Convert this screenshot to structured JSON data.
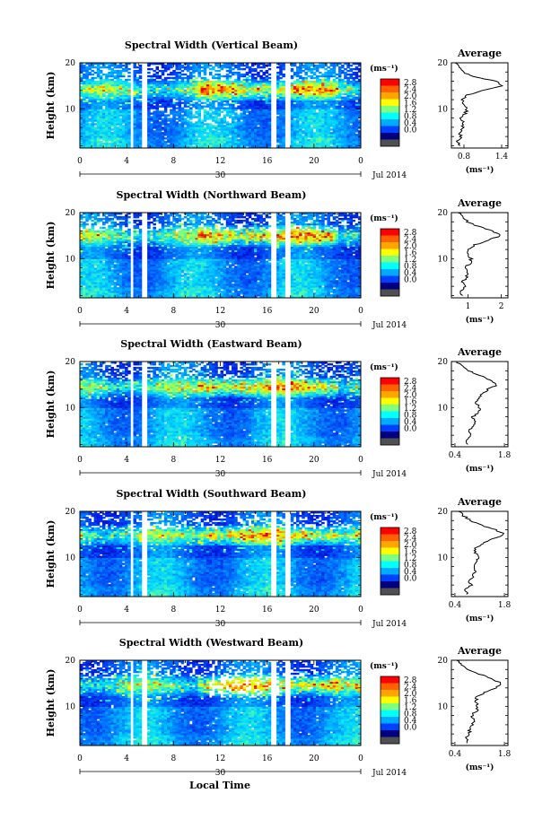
{
  "figure": {
    "date_label": "Jul 2014",
    "day_label": "30",
    "xlabel": "Local Time",
    "unit_label": "(ms⁻¹)",
    "avg_title": "Average",
    "avg_xlabel": "(ms⁻¹)",
    "ylabel": "Height (km)",
    "colorbar_ticks": [
      "2.8",
      "2.4",
      "2.0",
      "1.6",
      "1.2",
      "0.8",
      "0.4",
      "0.0"
    ],
    "colorbar_colors": [
      "#ff0000",
      "#ff6000",
      "#ffa500",
      "#ffff00",
      "#7fff7f",
      "#00ffff",
      "#00aaff",
      "#0040ff",
      "#00007f",
      "#505050"
    ]
  },
  "chart_data": [
    {
      "type": "heatmap",
      "title": "Spectral Width (Vertical Beam)",
      "xlabel": "Local Time",
      "ylabel": "Height (km)",
      "x_ticks": [
        "0",
        "4",
        "8",
        "12",
        "16",
        "20",
        "0"
      ],
      "y_ticks": [
        "20",
        "10"
      ],
      "xlim": [
        0,
        24
      ],
      "ylim": [
        1.5,
        20
      ],
      "data_gaps_hours": [
        [
          4.2,
          4.6
        ],
        [
          5.3,
          5.7
        ],
        [
          16.4,
          16.8
        ],
        [
          17.5,
          17.9
        ]
      ],
      "color_scale": {
        "min": 0.0,
        "max": 2.8,
        "unit": "ms^-1"
      },
      "average_profile": {
        "title": "Average",
        "xlabel": "(ms⁻¹)",
        "x_ticks": [
          "0.8",
          "1.4"
        ],
        "xlim": [
          0.6,
          1.5
        ],
        "heights": [
          2,
          3,
          4,
          5,
          6,
          7,
          8,
          9,
          10,
          11,
          12,
          13,
          14,
          15,
          16,
          17,
          18,
          19,
          20
        ],
        "values": [
          0.72,
          0.7,
          0.75,
          0.73,
          0.78,
          0.8,
          0.76,
          0.82,
          0.85,
          0.8,
          0.78,
          0.86,
          1.1,
          1.42,
          1.3,
          0.95,
          0.78,
          0.72,
          0.66
        ]
      }
    },
    {
      "type": "heatmap",
      "title": "Spectral Width (Northward Beam)",
      "xlabel": "Local Time",
      "ylabel": "Height (km)",
      "x_ticks": [
        "0",
        "4",
        "8",
        "12",
        "16",
        "20",
        "0"
      ],
      "y_ticks": [
        "20",
        "10"
      ],
      "xlim": [
        0,
        24
      ],
      "ylim": [
        1.5,
        20
      ],
      "data_gaps_hours": [
        [
          4.2,
          4.6
        ],
        [
          5.3,
          5.7
        ],
        [
          16.4,
          16.8
        ],
        [
          17.5,
          17.9
        ]
      ],
      "color_scale": {
        "min": 0.0,
        "max": 2.8,
        "unit": "ms^-1"
      },
      "average_profile": {
        "title": "Average",
        "xlabel": "(ms⁻¹)",
        "x_ticks": [
          "1",
          "2"
        ],
        "xlim": [
          0.5,
          2.2
        ],
        "heights": [
          2,
          3,
          4,
          5,
          6,
          7,
          8,
          9,
          10,
          11,
          12,
          13,
          14,
          15,
          16,
          17,
          18,
          19,
          20
        ],
        "values": [
          0.8,
          0.78,
          0.9,
          0.85,
          0.95,
          1.0,
          0.92,
          1.05,
          1.1,
          1.0,
          0.98,
          1.2,
          1.6,
          2.0,
          1.75,
          1.3,
          1.0,
          0.85,
          0.7
        ]
      }
    },
    {
      "type": "heatmap",
      "title": "Spectral Width (Eastward Beam)",
      "xlabel": "Local Time",
      "ylabel": "Height (km)",
      "x_ticks": [
        "0",
        "4",
        "8",
        "12",
        "16",
        "20",
        "0"
      ],
      "y_ticks": [
        "20",
        "10"
      ],
      "xlim": [
        0,
        24
      ],
      "ylim": [
        1.5,
        20
      ],
      "data_gaps_hours": [
        [
          4.2,
          4.6
        ],
        [
          5.3,
          5.7
        ],
        [
          16.4,
          16.8
        ],
        [
          17.5,
          17.9
        ]
      ],
      "color_scale": {
        "min": 0.0,
        "max": 2.8,
        "unit": "ms^-1"
      },
      "average_profile": {
        "title": "Average",
        "xlabel": "(ms⁻¹)",
        "x_ticks": [
          "0.4",
          "1.8"
        ],
        "xlim": [
          0.3,
          1.9
        ],
        "heights": [
          2,
          3,
          4,
          5,
          6,
          7,
          8,
          9,
          10,
          11,
          12,
          13,
          14,
          15,
          16,
          17,
          18,
          19,
          20
        ],
        "values": [
          0.75,
          0.7,
          0.85,
          0.8,
          0.95,
          1.0,
          0.9,
          1.05,
          1.1,
          1.0,
          1.05,
          1.2,
          1.35,
          1.6,
          1.4,
          1.1,
          0.8,
          0.6,
          0.45
        ]
      }
    },
    {
      "type": "heatmap",
      "title": "Spectral Width (Southward Beam)",
      "xlabel": "Local Time",
      "ylabel": "Height (km)",
      "x_ticks": [
        "0",
        "4",
        "8",
        "12",
        "16",
        "20",
        "0"
      ],
      "y_ticks": [
        "20",
        "10"
      ],
      "xlim": [
        0,
        24
      ],
      "ylim": [
        1.5,
        20
      ],
      "data_gaps_hours": [
        [
          4.2,
          4.6
        ],
        [
          5.3,
          5.7
        ],
        [
          16.4,
          16.8
        ],
        [
          17.5,
          17.9
        ]
      ],
      "color_scale": {
        "min": 0.0,
        "max": 2.8,
        "unit": "ms^-1"
      },
      "average_profile": {
        "title": "Average",
        "xlabel": "(ms⁻¹)",
        "x_ticks": [
          "0.4",
          "1.8"
        ],
        "xlim": [
          0.3,
          1.9
        ],
        "heights": [
          2,
          3,
          4,
          5,
          6,
          7,
          8,
          9,
          10,
          11,
          12,
          13,
          14,
          15,
          16,
          17,
          18,
          19,
          20
        ],
        "values": [
          0.75,
          0.72,
          0.85,
          0.8,
          0.92,
          0.98,
          0.9,
          1.0,
          1.05,
          0.98,
          1.0,
          1.2,
          1.45,
          1.8,
          1.55,
          1.15,
          0.85,
          0.65,
          0.5
        ]
      }
    },
    {
      "type": "heatmap",
      "title": "Spectral Width (Westward Beam)",
      "xlabel": "Local Time",
      "ylabel": "Height (km)",
      "x_ticks": [
        "0",
        "4",
        "8",
        "12",
        "16",
        "20",
        "0"
      ],
      "y_ticks": [
        "20",
        "10"
      ],
      "xlim": [
        0,
        24
      ],
      "ylim": [
        1.5,
        20
      ],
      "data_gaps_hours": [
        [
          4.2,
          4.6
        ],
        [
          5.3,
          5.7
        ],
        [
          16.4,
          16.8
        ],
        [
          17.5,
          17.9
        ]
      ],
      "color_scale": {
        "min": 0.0,
        "max": 2.8,
        "unit": "ms^-1"
      },
      "average_profile": {
        "title": "Average",
        "xlabel": "(ms⁻¹)",
        "x_ticks": [
          "0.4",
          "1.8"
        ],
        "xlim": [
          0.3,
          1.9
        ],
        "heights": [
          2,
          3,
          4,
          5,
          6,
          7,
          8,
          9,
          10,
          11,
          12,
          13,
          14,
          15,
          16,
          17,
          18,
          19,
          20
        ],
        "values": [
          0.75,
          0.72,
          0.82,
          0.8,
          0.9,
          0.95,
          0.88,
          1.0,
          1.05,
          0.98,
          1.02,
          1.25,
          1.55,
          1.7,
          1.45,
          1.1,
          0.8,
          0.6,
          0.45
        ]
      }
    }
  ]
}
